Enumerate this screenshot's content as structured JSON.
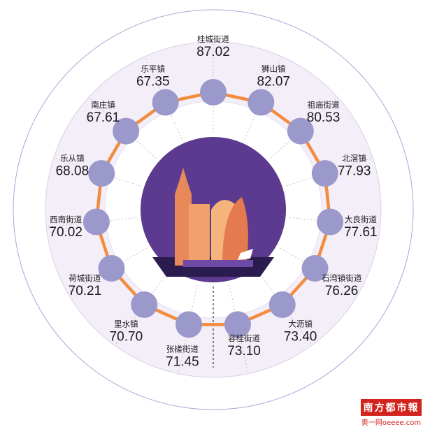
{
  "chart_data": {
    "type": "radial",
    "title": "",
    "points": [
      {
        "name": "桂城街道",
        "value": "87.02",
        "v": 87.02
      },
      {
        "name": "狮山镇",
        "value": "82.07",
        "v": 82.07
      },
      {
        "name": "祖庙街道",
        "value": "80.53",
        "v": 80.53
      },
      {
        "name": "北滘镇",
        "value": "77.93",
        "v": 77.93
      },
      {
        "name": "大良街道",
        "value": "77.61",
        "v": 77.61
      },
      {
        "name": "石湾镇街道",
        "value": "76.26",
        "v": 76.26
      },
      {
        "name": "大沥镇",
        "value": "73.40",
        "v": 73.4
      },
      {
        "name": "容桂街道",
        "value": "73.10",
        "v": 73.1
      },
      {
        "name": "张槎街道",
        "value": "71.45",
        "v": 71.45
      },
      {
        "name": "里水镇",
        "value": "70.70",
        "v": 70.7
      },
      {
        "name": "荷城街道",
        "value": "70.21",
        "v": 70.21
      },
      {
        "name": "西南街道",
        "value": "70.02",
        "v": 70.02
      },
      {
        "name": "乐从镇",
        "value": "68.08",
        "v": 68.08
      },
      {
        "name": "南庄镇",
        "value": "67.61",
        "v": 67.61
      },
      {
        "name": "乐平镇",
        "value": "67.35",
        "v": 67.35
      }
    ],
    "colors": {
      "node": "#9b98cc",
      "link": "#f28c3e",
      "ring": "#f3eef8",
      "center": "#5b3a8f"
    }
  },
  "logo": {
    "brand": "南方都市報",
    "site": "奥一网oeeee.com"
  }
}
